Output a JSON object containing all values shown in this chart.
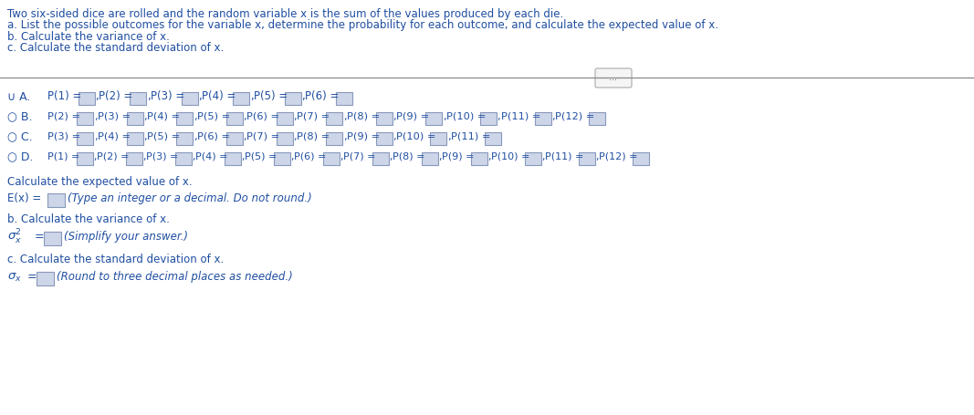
{
  "bg_color": "#ffffff",
  "title_lines": [
    "Two six-sided dice are rolled and the random variable x is the sum of the values produced by each die.",
    "a. List the possible outcomes for the variable x, determine the probability for each outcome, and calculate the expected value of x.",
    "b. Calculate the variance of x.",
    "c. Calculate the standard deviation of x."
  ],
  "text_color": "#1f4ea1",
  "box_fill": "#cdd5e8",
  "box_edge": "#8899bb",
  "option_A": {
    "label": "∪ A.",
    "items": [
      "P(1) =",
      "P(2) =",
      "P(3) =",
      "P(4) =",
      "P(5) =",
      "P(6) ="
    ]
  },
  "option_B": {
    "label": "○ B.",
    "items": [
      "P(2) =",
      "P(3) =",
      "P(4) =",
      "P(5) =",
      "P(6) =",
      "P(7) =",
      "P(8) =",
      "P(9) =",
      "P(10) =",
      "P(11) =",
      "P(12) ="
    ]
  },
  "option_C": {
    "label": "○ C.",
    "items": [
      "P(3) =",
      "P(4) =",
      "P(5) =",
      "P(6) =",
      "P(7) =",
      "P(8) =",
      "P(9) =",
      "P(10) =",
      "P(11) ="
    ]
  },
  "option_D": {
    "label": "○ D.",
    "items": [
      "P(1) =",
      "P(2) =",
      "P(3) =",
      "P(4) =",
      "P(5) =",
      "P(6) =",
      "P(7) =",
      "P(8) =",
      "P(9) =",
      "P(10) =",
      "P(11) =",
      "P(12) ="
    ]
  },
  "calc_expected": "Calculate the expected value of x.",
  "ex_label": "E(x) =",
  "ex_hint": "(Type an integer or a decimal. Do not round.)",
  "var_header": "b. Calculate the variance of x.",
  "var_hint": "(Simplify your answer.)",
  "std_header": "c. Calculate the standard deviation of x.",
  "std_hint": "(Round to three decimal places as needed.)",
  "dots_label": "..."
}
